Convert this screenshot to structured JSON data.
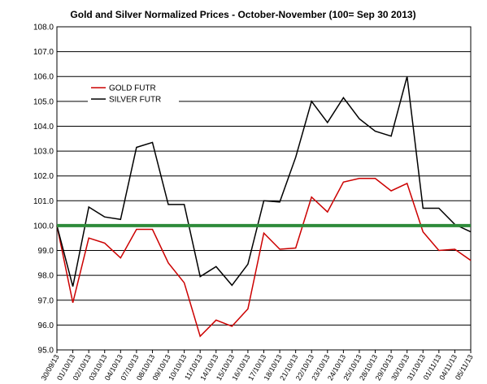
{
  "chart_data": {
    "type": "line",
    "title": "Gold and Silver Normalized Prices - October-November  (100= Sep 30 2013)",
    "xlabel": "",
    "ylabel": "",
    "ylim": [
      95.0,
      108.0
    ],
    "yticks": [
      "95.0",
      "96.0",
      "97.0",
      "98.0",
      "99.0",
      "100.0",
      "101.0",
      "102.0",
      "103.0",
      "104.0",
      "105.0",
      "106.0",
      "107.0",
      "108.0"
    ],
    "grid": "horizontal",
    "legend_position": "upper-left",
    "categories": [
      "30/09/13",
      "01/10/13",
      "02/10/13",
      "03/10/13",
      "04/10/13",
      "07/10/13",
      "08/10/13",
      "09/10/13",
      "10/10/13",
      "11/10/13",
      "14/10/13",
      "15/10/13",
      "16/10/13",
      "17/10/13",
      "18/10/13",
      "21/10/13",
      "22/10/13",
      "23/10/13",
      "24/10/13",
      "25/10/13",
      "28/10/13",
      "29/10/13",
      "30/10/13",
      "31/10/13",
      "01/11/13",
      "04/11/13",
      "05/11/13"
    ],
    "series": [
      {
        "name": "GOLD  FUTR",
        "color": "#cc0000",
        "values": [
          100.0,
          96.9,
          99.5,
          99.3,
          98.7,
          99.85,
          99.85,
          98.5,
          97.7,
          95.55,
          96.2,
          95.95,
          96.65,
          99.7,
          99.05,
          99.1,
          101.15,
          100.55,
          101.75,
          101.9,
          101.9,
          101.4,
          101.7,
          99.75,
          99.0,
          99.05,
          98.6
        ]
      },
      {
        "name": "SILVER  FUTR",
        "color": "#000000",
        "values": [
          100.0,
          97.55,
          100.75,
          100.35,
          100.25,
          103.15,
          103.35,
          100.85,
          100.85,
          97.95,
          98.35,
          97.6,
          98.45,
          101.0,
          100.95,
          102.75,
          105.0,
          104.15,
          105.15,
          104.3,
          103.8,
          103.6,
          106.0,
          100.7,
          100.7,
          100.05,
          99.75
        ]
      }
    ],
    "reference_line": {
      "value": 100.0,
      "color": "#2e8b3a"
    }
  }
}
